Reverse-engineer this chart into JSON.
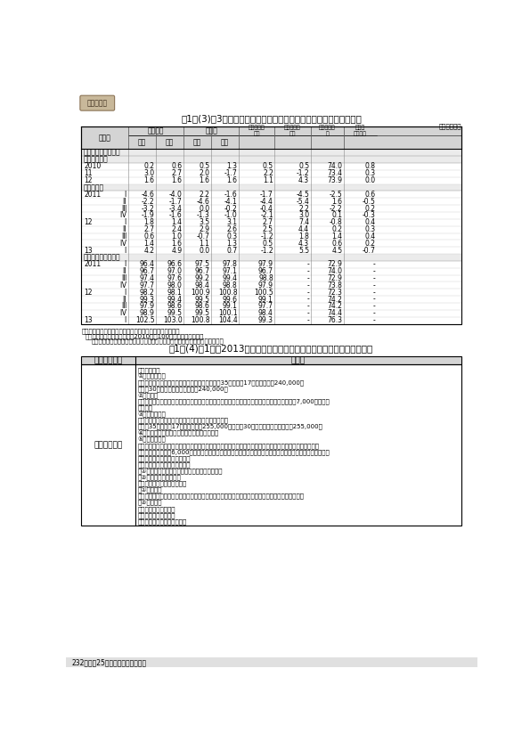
{
  "page_title_upper": "付1－(3)－3表　家計主要項目（二人以上の世帯のうち勤労者世帯）",
  "unit_label": "（単位　％）",
  "table2_title": "付1－(4)－1表　2013年春季労使交渉における産業別組織の主な要求一覧",
  "table2_col1_header": "団体・組合名",
  "table2_col2_header": "要　求",
  "table2_org": "ＵＡゼンセン",
  "table2_content_lines": [
    "（賃金改定）",
    "①統一要求基準",
    "　ミニマム水準（諸手当を除く基本賃金）　高卒35歳・勤続17年　基本賃金240,000円",
    "　大卒30歳・勤続８年　基本賃金240,000円",
    "②要求水準",
    "　ミニマム水準を下回る組合は、賃金体系（カーブ）維持分を含め賃上げ廉貸として１人平均7,000円を要求",
    "　する。",
    "③部門要求基準",
    "　到達水準（基本賃金）：具体的な水準は部門設定。",
    "　高卒35歳・勤続17年　基本賃金255,000円　大卒30歳・勤続８年　基本賃金255,000円",
    "④目標水準（基本賃金）：各部門で設定する。",
    "⑤部門要求基準",
    "　賃金水準がミニマム水準を上回り、到達水準に達していない組合の要求基準は、賃金体系（カーブ）維持",
    "　分を含め１人平均6,000円を要求する。賃金水準が到達水準を上回る組合については、各部門で目標水準を",
    "　設定の上、要求基準を設定。",
    "（非正規労働者等の処遇改善）",
    "　①正社員登用制度等諸制度の構築、運用の徹底",
    "　②平均賃給を引き上げ",
    "（総合的な労働条件の課題）",
    "　①必須課題",
    "　　全ての加盟組合で改正労働者派遣法、改正労働契約法、改正高年齢者雇用安定法に取り組む。",
    "　②選択課題",
    "　　労働協約の見直し",
    "　　男女間格差の是正",
    "　　仕事と生活の自立支援等"
  ],
  "footer_text": "232　平成25年版　労働経済の分析",
  "bg_color": "#ffffff",
  "header_bg_color": "#d4d4d4",
  "section_bg_color": "#ebebeb",
  "logo_text": "付属統計表"
}
